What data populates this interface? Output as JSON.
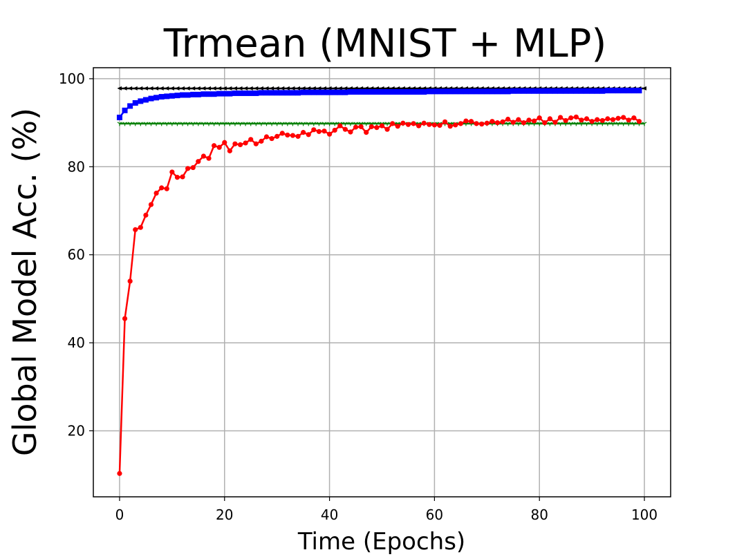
{
  "chart_data": {
    "type": "line",
    "title": "Trmean (MNIST + MLP)",
    "xlabel": "Time (Epochs)",
    "ylabel": "Global Model Acc. (%)",
    "xlim": [
      -5,
      105
    ],
    "ylim": [
      5,
      102.5
    ],
    "xticks": [
      0,
      20,
      40,
      60,
      80,
      100
    ],
    "yticks": [
      20,
      40,
      60,
      80,
      100
    ],
    "grid": true,
    "legend": "none",
    "series": [
      {
        "color": "#000000",
        "marker": "triangle-left",
        "x": [
          0,
          100
        ],
        "values": [
          97.8,
          97.8
        ],
        "note_marker_every": 1
      },
      {
        "color": "#0000ff",
        "marker": "square",
        "x": [
          0,
          1,
          2,
          3,
          4,
          5,
          6,
          7,
          8,
          9,
          10,
          11,
          12,
          13,
          14,
          15,
          16,
          17,
          18,
          19,
          20,
          21,
          22,
          23,
          24,
          25,
          26,
          27,
          28,
          29,
          30,
          31,
          32,
          33,
          34,
          35,
          36,
          37,
          38,
          39,
          40,
          41,
          42,
          43,
          44,
          45,
          46,
          47,
          48,
          49,
          50,
          51,
          52,
          53,
          54,
          55,
          56,
          57,
          58,
          59,
          60,
          61,
          62,
          63,
          64,
          65,
          66,
          67,
          68,
          69,
          70,
          71,
          72,
          73,
          74,
          75,
          76,
          77,
          78,
          79,
          80,
          81,
          82,
          83,
          84,
          85,
          86,
          87,
          88,
          89,
          90,
          91,
          92,
          93,
          94,
          95,
          96,
          97,
          98,
          99
        ],
        "values": [
          91.2,
          92.8,
          93.8,
          94.5,
          94.9,
          95.2,
          95.5,
          95.7,
          95.9,
          96.0,
          96.1,
          96.2,
          96.3,
          96.3,
          96.4,
          96.4,
          96.5,
          96.5,
          96.5,
          96.6,
          96.6,
          96.6,
          96.7,
          96.7,
          96.7,
          96.7,
          96.7,
          96.8,
          96.8,
          96.8,
          96.8,
          96.8,
          96.8,
          96.8,
          96.8,
          96.9,
          96.9,
          96.9,
          96.9,
          96.9,
          96.9,
          96.9,
          96.9,
          96.9,
          97.0,
          97.0,
          97.0,
          97.0,
          97.0,
          97.0,
          97.0,
          97.0,
          97.0,
          97.0,
          97.0,
          97.0,
          97.0,
          97.0,
          97.0,
          97.1,
          97.1,
          97.1,
          97.1,
          97.1,
          97.1,
          97.1,
          97.1,
          97.1,
          97.1,
          97.1,
          97.1,
          97.1,
          97.1,
          97.1,
          97.1,
          97.2,
          97.2,
          97.2,
          97.2,
          97.2,
          97.2,
          97.2,
          97.2,
          97.2,
          97.2,
          97.2,
          97.2,
          97.2,
          97.2,
          97.2,
          97.2,
          97.2,
          97.2,
          97.3,
          97.3,
          97.3,
          97.3,
          97.3,
          97.3,
          97.3
        ]
      },
      {
        "color": "#008000",
        "marker": "tri-down",
        "x": [
          0,
          100
        ],
        "values": [
          89.8,
          89.8
        ]
      },
      {
        "color": "#ff0000",
        "marker": "circle",
        "x": [
          0,
          1,
          2,
          3,
          4,
          5,
          6,
          7,
          8,
          9,
          10,
          11,
          12,
          13,
          14,
          15,
          16,
          17,
          18,
          19,
          20,
          21,
          22,
          23,
          24,
          25,
          26,
          27,
          28,
          29,
          30,
          31,
          32,
          33,
          34,
          35,
          36,
          37,
          38,
          39,
          40,
          41,
          42,
          43,
          44,
          45,
          46,
          47,
          48,
          49,
          50,
          51,
          52,
          53,
          54,
          55,
          56,
          57,
          58,
          59,
          60,
          61,
          62,
          63,
          64,
          65,
          66,
          67,
          68,
          69,
          70,
          71,
          72,
          73,
          74,
          75,
          76,
          77,
          78,
          79,
          80,
          81,
          82,
          83,
          84,
          85,
          86,
          87,
          88,
          89,
          90,
          91,
          92,
          93,
          94,
          95,
          96,
          97,
          98,
          99
        ],
        "values": [
          10.3,
          45.5,
          54.0,
          65.7,
          66.2,
          69.0,
          71.4,
          74.0,
          75.2,
          75.0,
          78.8,
          77.6,
          77.7,
          79.6,
          79.8,
          81.2,
          82.4,
          81.9,
          84.8,
          84.4,
          85.5,
          83.6,
          85.2,
          85.0,
          85.4,
          86.2,
          85.2,
          85.8,
          86.8,
          86.4,
          86.9,
          87.6,
          87.2,
          87.1,
          86.9,
          87.8,
          87.3,
          88.4,
          88.0,
          88.1,
          87.4,
          88.3,
          89.3,
          88.5,
          87.9,
          89.0,
          89.1,
          87.8,
          89.1,
          88.9,
          89.3,
          88.5,
          89.8,
          89.2,
          89.9,
          89.6,
          89.8,
          89.3,
          89.9,
          89.6,
          89.5,
          89.4,
          90.2,
          89.2,
          89.5,
          89.8,
          90.4,
          90.3,
          89.8,
          89.7,
          89.9,
          90.3,
          90.0,
          90.2,
          90.8,
          90.1,
          90.7,
          90.0,
          90.6,
          90.4,
          91.1,
          90.0,
          90.9,
          90.1,
          91.2,
          90.5,
          91.1,
          91.3,
          90.6,
          90.9,
          90.3,
          90.7,
          90.5,
          90.9,
          90.7,
          91.0,
          91.2,
          90.6,
          91.1,
          90.3
        ]
      }
    ]
  }
}
